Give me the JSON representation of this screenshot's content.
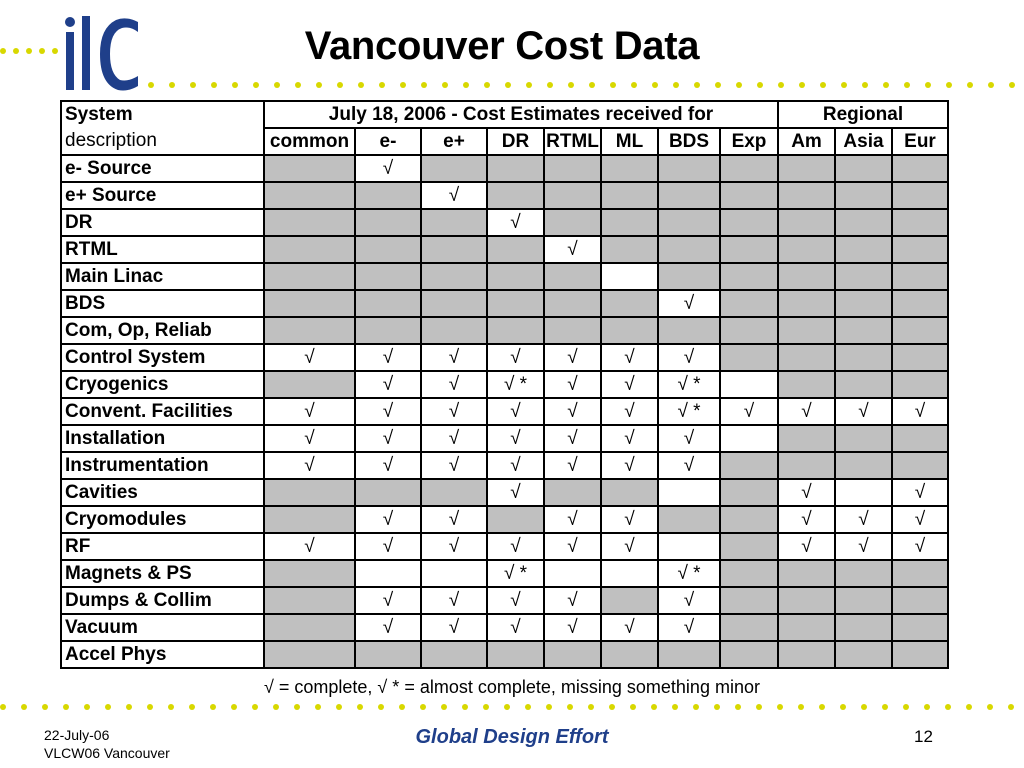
{
  "slide": {
    "title": "Vancouver Cost Data",
    "logo_text": "ilc",
    "brand_color": "#1f3f8a",
    "dot_color": "#d8d800"
  },
  "table": {
    "header": {
      "system_line1": "System",
      "system_line2": "description",
      "estimates_title": "July 18, 2006 - Cost Estimates received for",
      "regional_title": "Regional",
      "columns": [
        "common",
        "e-",
        "e+",
        "DR",
        "RTML",
        "ML",
        "BDS",
        "Exp",
        "Am",
        "Asia",
        "Eur"
      ]
    },
    "rows": [
      {
        "name": "e- Source",
        "cells": [
          "",
          "√",
          "",
          "",
          "",
          "",
          "",
          "",
          "",
          "",
          ""
        ],
        "gray": [
          1,
          0,
          1,
          1,
          1,
          1,
          1,
          1,
          1,
          1,
          1
        ]
      },
      {
        "name": "e+ Source",
        "cells": [
          "",
          "",
          "√",
          "",
          "",
          "",
          "",
          "",
          "",
          "",
          ""
        ],
        "gray": [
          1,
          1,
          0,
          1,
          1,
          1,
          1,
          1,
          1,
          1,
          1
        ]
      },
      {
        "name": "DR",
        "cells": [
          "",
          "",
          "",
          "√",
          "",
          "",
          "",
          "",
          "",
          "",
          ""
        ],
        "gray": [
          1,
          1,
          1,
          0,
          1,
          1,
          1,
          1,
          1,
          1,
          1
        ]
      },
      {
        "name": "RTML",
        "cells": [
          "",
          "",
          "",
          "",
          "√",
          "",
          "",
          "",
          "",
          "",
          ""
        ],
        "gray": [
          1,
          1,
          1,
          1,
          0,
          1,
          1,
          1,
          1,
          1,
          1
        ]
      },
      {
        "name": "Main Linac",
        "cells": [
          "",
          "",
          "",
          "",
          "",
          "",
          "",
          "",
          "",
          "",
          ""
        ],
        "gray": [
          1,
          1,
          1,
          1,
          1,
          0,
          1,
          1,
          1,
          1,
          1
        ]
      },
      {
        "name": "BDS",
        "cells": [
          "",
          "",
          "",
          "",
          "",
          "",
          "√",
          "",
          "",
          "",
          ""
        ],
        "gray": [
          1,
          1,
          1,
          1,
          1,
          1,
          0,
          1,
          1,
          1,
          1
        ]
      },
      {
        "name": "Com, Op, Reliab",
        "cells": [
          "",
          "",
          "",
          "",
          "",
          "",
          "",
          "",
          "",
          "",
          ""
        ],
        "gray": [
          1,
          1,
          1,
          1,
          1,
          1,
          1,
          1,
          1,
          1,
          1
        ]
      },
      {
        "name": "Control System",
        "cells": [
          "√",
          "√",
          "√",
          "√",
          "√",
          "√",
          "√",
          "",
          "",
          "",
          ""
        ],
        "gray": [
          0,
          0,
          0,
          0,
          0,
          0,
          0,
          1,
          1,
          1,
          1
        ]
      },
      {
        "name": "Cryogenics",
        "cells": [
          "",
          "√",
          "√",
          "√ *",
          "√",
          "√",
          "√ *",
          "",
          "",
          "",
          ""
        ],
        "gray": [
          1,
          0,
          0,
          0,
          0,
          0,
          0,
          0,
          1,
          1,
          1
        ]
      },
      {
        "name": "Convent. Facilities",
        "cells": [
          "√",
          "√",
          "√",
          "√",
          "√",
          "√",
          "√ *",
          "√",
          "√",
          "√",
          "√"
        ],
        "gray": [
          0,
          0,
          0,
          0,
          0,
          0,
          0,
          0,
          0,
          0,
          0
        ]
      },
      {
        "name": "Installation",
        "cells": [
          "√",
          "√",
          "√",
          "√",
          "√",
          "√",
          "√",
          "",
          "",
          "",
          ""
        ],
        "gray": [
          0,
          0,
          0,
          0,
          0,
          0,
          0,
          0,
          1,
          1,
          1
        ]
      },
      {
        "name": "Instrumentation",
        "cells": [
          "√",
          "√",
          "√",
          "√",
          "√",
          "√",
          "√",
          "",
          "",
          "",
          ""
        ],
        "gray": [
          0,
          0,
          0,
          0,
          0,
          0,
          0,
          1,
          1,
          1,
          1
        ]
      },
      {
        "name": "Cavities",
        "cells": [
          "",
          "",
          "",
          "√",
          "",
          "",
          "",
          "",
          "√",
          "",
          "√"
        ],
        "gray": [
          1,
          1,
          1,
          0,
          1,
          1,
          0,
          1,
          0,
          0,
          0
        ]
      },
      {
        "name": "Cryomodules",
        "cells": [
          "",
          "√",
          "√",
          "",
          "√",
          "√",
          "",
          "",
          "√",
          "√",
          "√"
        ],
        "gray": [
          1,
          0,
          0,
          1,
          0,
          0,
          1,
          1,
          0,
          0,
          0
        ]
      },
      {
        "name": "RF",
        "cells": [
          "√",
          "√",
          "√",
          "√",
          "√",
          "√",
          "",
          "",
          "√",
          "√",
          "√"
        ],
        "gray": [
          0,
          0,
          0,
          0,
          0,
          0,
          0,
          1,
          0,
          0,
          0
        ]
      },
      {
        "name": "Magnets & PS",
        "cells": [
          "",
          "",
          "",
          "√ *",
          "",
          "",
          "√ *",
          "",
          "",
          "",
          ""
        ],
        "gray": [
          1,
          0,
          0,
          0,
          0,
          0,
          0,
          1,
          1,
          1,
          1
        ]
      },
      {
        "name": "Dumps & Collim",
        "cells": [
          "",
          "√",
          "√",
          "√",
          "√",
          "",
          "√",
          "",
          "",
          "",
          ""
        ],
        "gray": [
          1,
          0,
          0,
          0,
          0,
          1,
          0,
          1,
          1,
          1,
          1
        ]
      },
      {
        "name": "Vacuum",
        "cells": [
          "",
          "√",
          "√",
          "√",
          "√",
          "√",
          "√",
          "",
          "",
          "",
          ""
        ],
        "gray": [
          1,
          0,
          0,
          0,
          0,
          0,
          0,
          1,
          1,
          1,
          1
        ]
      },
      {
        "name": "Accel Phys",
        "cells": [
          "",
          "",
          "",
          "",
          "",
          "",
          "",
          "",
          "",
          "",
          ""
        ],
        "gray": [
          1,
          1,
          1,
          1,
          1,
          1,
          1,
          1,
          1,
          1,
          1
        ]
      }
    ]
  },
  "legend": "√ = complete,      √ * = almost complete, missing something minor",
  "footer": {
    "date": "22-July-06",
    "event": "VLCW06   Vancouver",
    "center": "Global Design Effort",
    "page": "12"
  }
}
